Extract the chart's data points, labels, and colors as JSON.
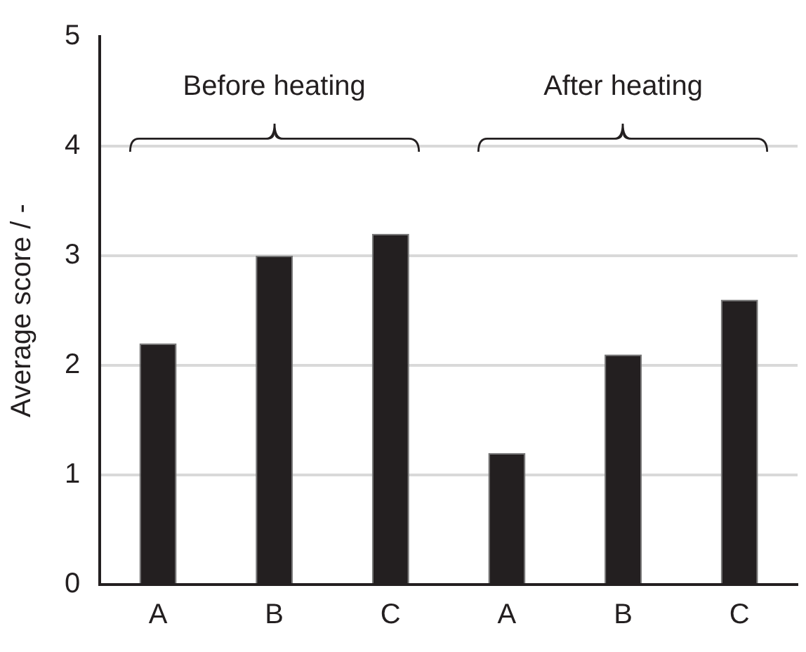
{
  "chart_data": {
    "type": "bar",
    "ylabel": "Average score / -",
    "categories": [
      "A",
      "B",
      "C",
      "A",
      "B",
      "C"
    ],
    "values": [
      2.2,
      3.0,
      3.2,
      1.2,
      2.1,
      2.6
    ],
    "color": "#231f20",
    "ylim": [
      0,
      5
    ],
    "yticks": [
      0,
      1,
      2,
      3,
      4,
      5
    ],
    "grid": "y",
    "legend": false,
    "annotations": [
      "Before heating",
      "After heating"
    ]
  }
}
